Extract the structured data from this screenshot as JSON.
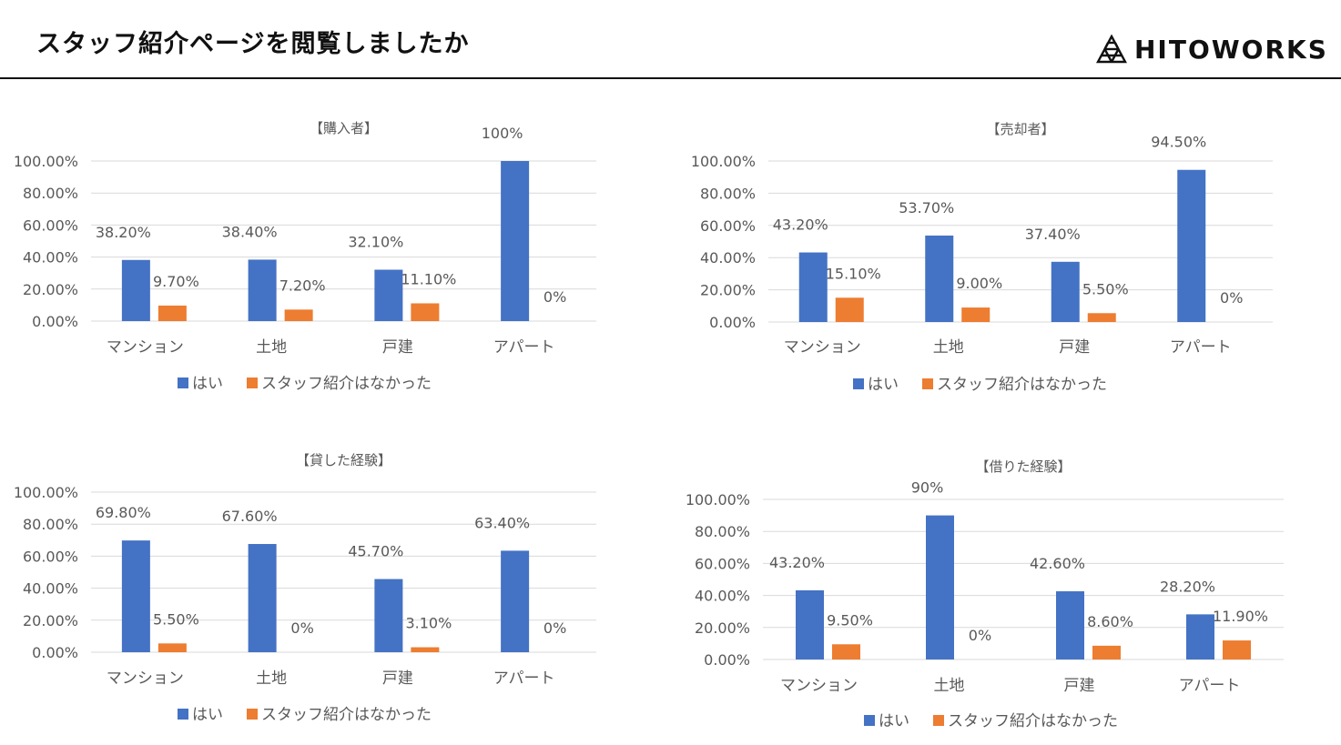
{
  "header": {
    "title": "スタッフ紹介ページを閲覧しましたか",
    "logo_text": "HITOWORKS"
  },
  "colors": {
    "series1": "#4472C4",
    "series2": "#ED7D31",
    "grid": "#D9D9D9",
    "text": "#595959"
  },
  "chart_data": [
    {
      "type": "bar",
      "title": "【購入者】",
      "categories": [
        "マンション",
        "土地",
        "戸建",
        "アパート"
      ],
      "series": [
        {
          "name": "はい",
          "values": [
            38.2,
            38.4,
            32.1,
            100
          ],
          "labels": [
            "38.20%",
            "38.40%",
            "32.10%",
            "100%"
          ]
        },
        {
          "name": "スタッフ紹介はなかった",
          "values": [
            9.7,
            7.2,
            11.1,
            0
          ],
          "labels": [
            "9.70%",
            "7.20%",
            "11.10%",
            "0%"
          ]
        }
      ],
      "yticks": [
        "0.00%",
        "20.00%",
        "40.00%",
        "60.00%",
        "80.00%",
        "100.00%"
      ],
      "ylim": [
        0,
        100
      ],
      "grid": true,
      "legend": "bottom"
    },
    {
      "type": "bar",
      "title": "【売却者】",
      "categories": [
        "マンション",
        "土地",
        "戸建",
        "アパート"
      ],
      "series": [
        {
          "name": "はい",
          "values": [
            43.2,
            53.7,
            37.4,
            94.5
          ],
          "labels": [
            "43.20%",
            "53.70%",
            "37.40%",
            "94.50%"
          ]
        },
        {
          "name": "スタッフ紹介はなかった",
          "values": [
            15.1,
            9.0,
            5.5,
            0
          ],
          "labels": [
            "15.10%",
            "9.00%",
            "5.50%",
            "0%"
          ]
        }
      ],
      "yticks": [
        "0.00%",
        "20.00%",
        "40.00%",
        "60.00%",
        "80.00%",
        "100.00%"
      ],
      "ylim": [
        0,
        100
      ],
      "grid": true,
      "legend": "bottom"
    },
    {
      "type": "bar",
      "title": "【貸した経験】",
      "categories": [
        "マンション",
        "土地",
        "戸建",
        "アパート"
      ],
      "series": [
        {
          "name": "はい",
          "values": [
            69.8,
            67.6,
            45.7,
            63.4
          ],
          "labels": [
            "69.80%",
            "67.60%",
            "45.70%",
            "63.40%"
          ]
        },
        {
          "name": "スタッフ紹介はなかった",
          "values": [
            5.5,
            0,
            3.1,
            0
          ],
          "labels": [
            "5.50%",
            "0%",
            "3.10%",
            "0%"
          ]
        }
      ],
      "yticks": [
        "0.00%",
        "20.00%",
        "40.00%",
        "60.00%",
        "80.00%",
        "100.00%"
      ],
      "ylim": [
        0,
        100
      ],
      "grid": true,
      "legend": "bottom"
    },
    {
      "type": "bar",
      "title": "【借りた経験】",
      "categories": [
        "マンション",
        "土地",
        "戸建",
        "アパート"
      ],
      "series": [
        {
          "name": "はい",
          "values": [
            43.2,
            90,
            42.6,
            28.2
          ],
          "labels": [
            "43.20%",
            "90%",
            "42.60%",
            "28.20%"
          ]
        },
        {
          "name": "スタッフ紹介はなかった",
          "values": [
            9.5,
            0,
            8.6,
            11.9
          ],
          "labels": [
            "9.50%",
            "0%",
            "8.60%",
            "11.90%"
          ]
        }
      ],
      "yticks": [
        "0.00%",
        "20.00%",
        "40.00%",
        "60.00%",
        "80.00%",
        "100.00%"
      ],
      "ylim": [
        0,
        100
      ],
      "grid": true,
      "legend": "bottom"
    }
  ]
}
